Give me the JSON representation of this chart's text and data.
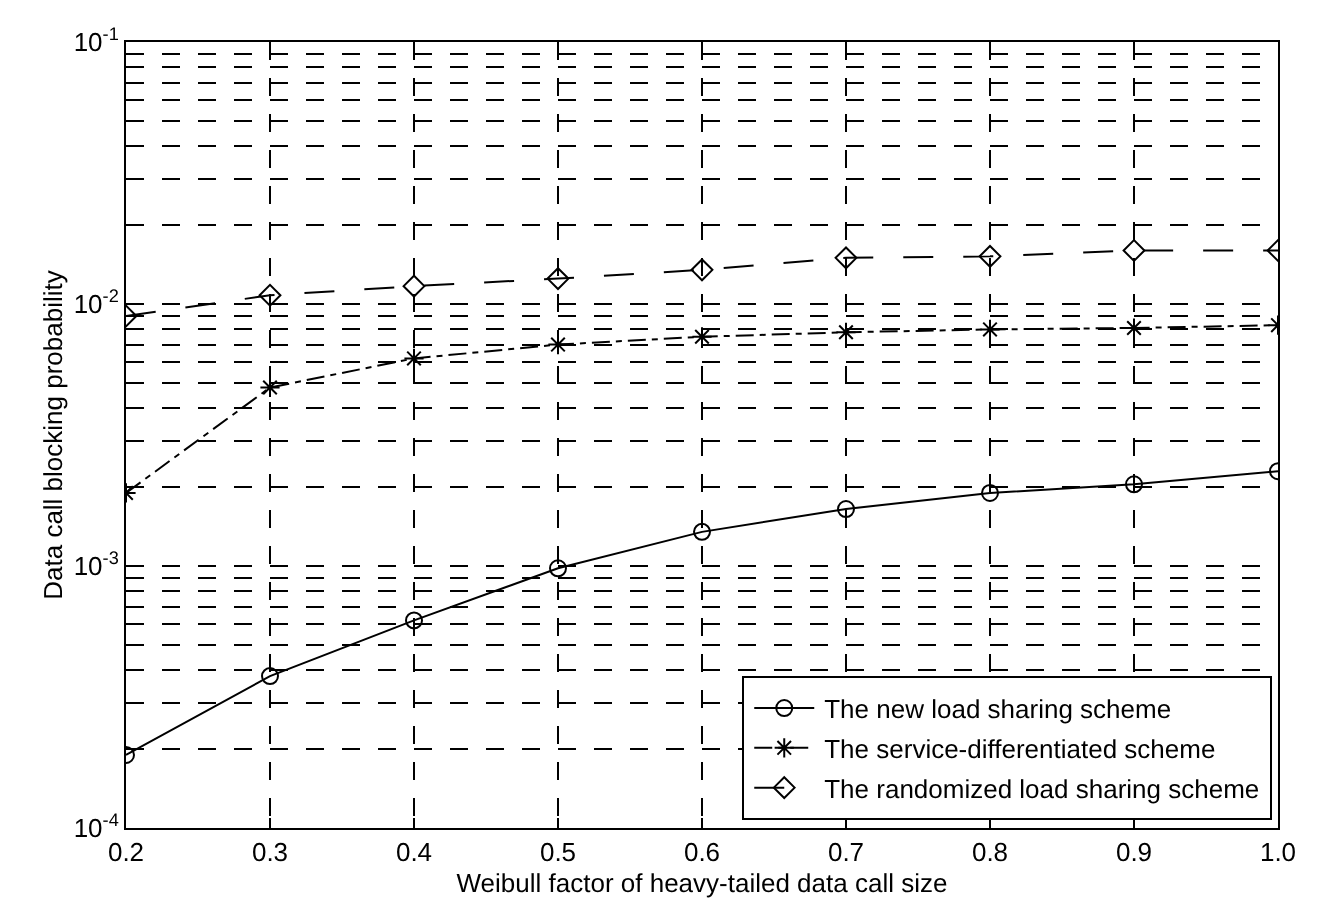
{
  "chart_data": {
    "type": "line",
    "xlabel": "Weibull factor of heavy-tailed data call size",
    "ylabel": "Data call blocking probability",
    "x": [
      0.2,
      0.3,
      0.4,
      0.5,
      0.6,
      0.7,
      0.8,
      0.9,
      1.0
    ],
    "series": [
      {
        "name": "The new load sharing scheme",
        "color": "#000000",
        "marker": "circle",
        "line_style": "solid",
        "values": [
          0.00019,
          0.00038,
          0.00062,
          0.00098,
          0.00135,
          0.00165,
          0.0019,
          0.00205,
          0.0023
        ]
      },
      {
        "name": "The service-differentiated scheme",
        "color": "#000000",
        "marker": "cross",
        "line_style": "dashed",
        "values": [
          0.0019,
          0.0048,
          0.0062,
          0.007,
          0.0075,
          0.0078,
          0.008,
          0.0081,
          0.0083
        ]
      },
      {
        "name": "The randomized load sharing scheme",
        "color": "#000000",
        "marker": "diamond",
        "line_style": "dashed",
        "values": [
          0.009,
          0.0108,
          0.0117,
          0.0125,
          0.0135,
          0.015,
          0.0152,
          0.016,
          0.016
        ]
      }
    ],
    "log": "y",
    "xlim": [
      0.2,
      1.0
    ],
    "xticks": [
      0.2,
      0.3,
      0.4,
      0.5,
      0.6,
      0.7,
      0.8,
      0.9,
      {
        "value": 1.0,
        "label": "1.0"
      }
    ],
    "ylim": [
      0.0001,
      0.1
    ],
    "yticks": [
      {
        "value": 0.0001,
        "label": "10$^{-4}$"
      },
      {
        "value": 0.0002,
        "label": null
      },
      {
        "value": 0.0003,
        "label": null
      },
      {
        "value": 0.0004,
        "label": null
      },
      {
        "value": 0.0005,
        "label": null
      },
      {
        "value": 0.0006,
        "label": null
      },
      {
        "value": 0.0007,
        "label": null
      },
      {
        "value": 0.0008,
        "label": null
      },
      {
        "value": 0.0009,
        "label": null
      },
      {
        "value": 0.001,
        "label": "10$^{-3}$"
      },
      {
        "value": 0.002,
        "label": null
      },
      {
        "value": 0.003,
        "label": null
      },
      {
        "value": 0.004,
        "label": null
      },
      {
        "value": 0.005,
        "label": null
      },
      {
        "value": 0.006,
        "label": null
      },
      {
        "value": 0.007,
        "label": null
      },
      {
        "value": 0.008,
        "label": null
      },
      {
        "value": 0.009,
        "label": null
      },
      {
        "value": 0.01,
        "label": "10$^{-2}$"
      },
      {
        "value": 0.02,
        "label": null
      },
      {
        "value": 0.03,
        "label": null
      },
      {
        "value": 0.04,
        "label": null
      },
      {
        "value": 0.05,
        "label": null
      },
      {
        "value": 0.06,
        "label": null
      },
      {
        "value": 0.07,
        "label": null
      },
      {
        "value": 0.08,
        "label": null
      },
      {
        "value": 0.09,
        "label": null
      },
      {
        "value": 0.1,
        "label": "10$^{-1}$"
      }
    ],
    "grid": true,
    "legend": "bottom right"
  }
}
